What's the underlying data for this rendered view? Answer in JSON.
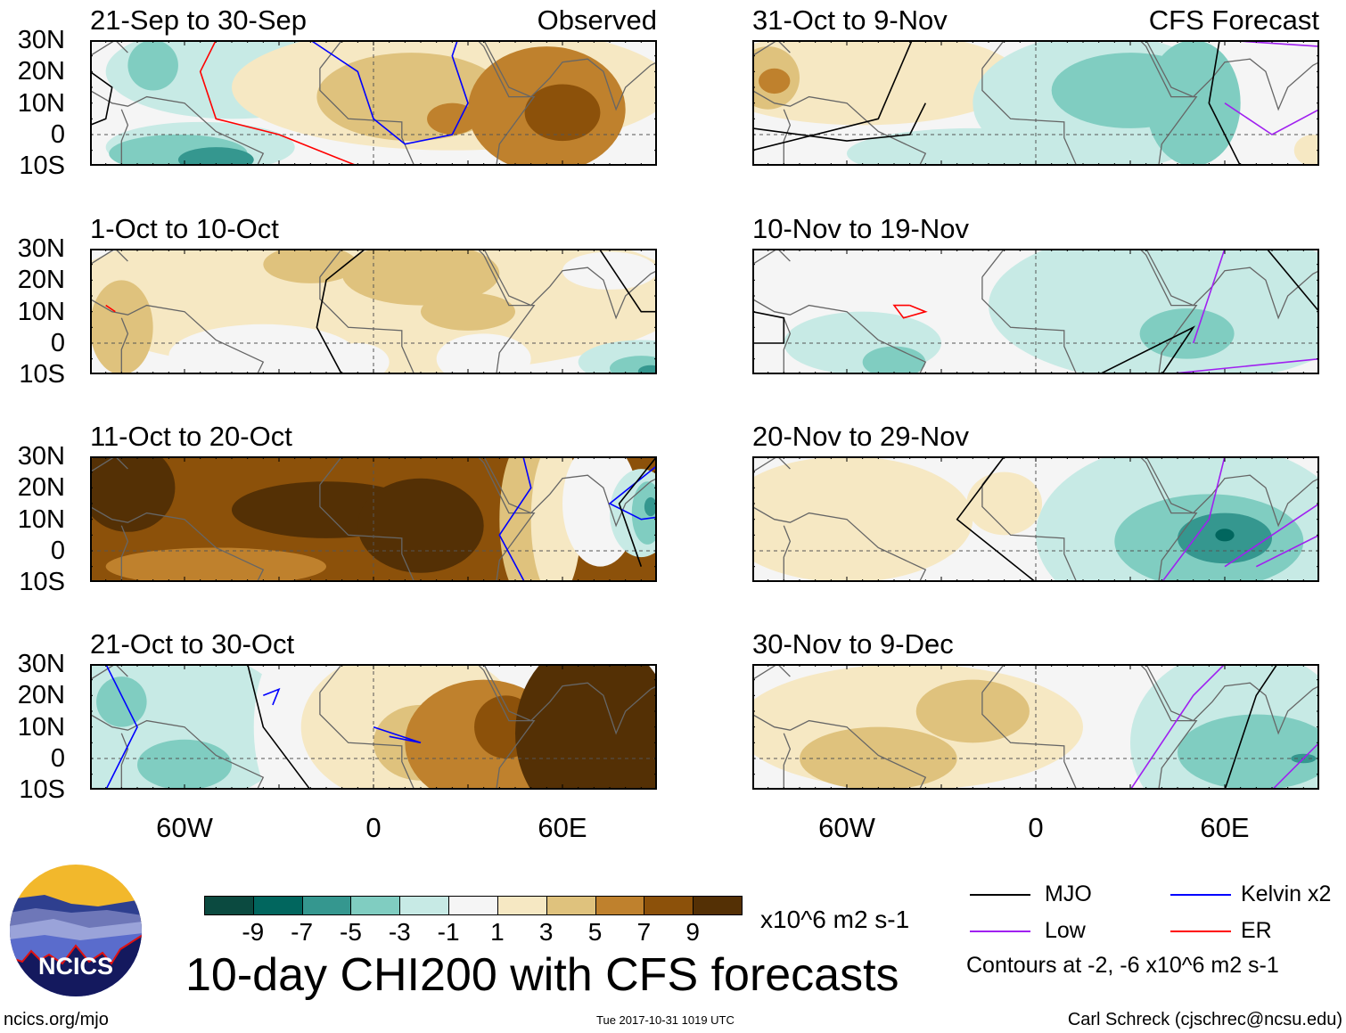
{
  "panels": [
    {
      "title": "21-Sep to 30-Sep",
      "tag": "Observed"
    },
    {
      "title": "1-Oct to 10-Oct",
      "tag": ""
    },
    {
      "title": "11-Oct to 20-Oct",
      "tag": ""
    },
    {
      "title": "21-Oct to 30-Oct",
      "tag": ""
    },
    {
      "title": "31-Oct to 9-Nov",
      "tag": "CFS Forecast"
    },
    {
      "title": "10-Nov to 19-Nov",
      "tag": ""
    },
    {
      "title": "20-Nov to 29-Nov",
      "tag": ""
    },
    {
      "title": "30-Nov to 9-Dec",
      "tag": ""
    }
  ],
  "lat_labels": [
    "30N",
    "20N",
    "10N",
    "0",
    "10S"
  ],
  "lon_labels": [
    "60W",
    "0",
    "60E"
  ],
  "colorbar": {
    "labels": [
      "-9",
      "-7",
      "-5",
      "-3",
      "-1",
      "1",
      "3",
      "5",
      "7",
      "9"
    ],
    "colors": [
      "#0b4a40",
      "#01665e",
      "#35978f",
      "#80cdc1",
      "#c7eae5",
      "#f5f5f5",
      "#f6e8c3",
      "#dfc27d",
      "#bf812d",
      "#8c510a",
      "#543005"
    ],
    "units": "x10^6 m2 s-1"
  },
  "main_title": "10-day CHI200 with CFS forecasts",
  "legend": {
    "items": [
      {
        "label": "MJO",
        "color": "#000000"
      },
      {
        "label": "Kelvin x2",
        "color": "#0000ff"
      },
      {
        "label": "Low",
        "color": "#a020f0"
      },
      {
        "label": "ER",
        "color": "#ff0000"
      }
    ],
    "contour_note": "Contours at -2, -6 x10^6 m2 s-1"
  },
  "logo": {
    "text": "NCICS"
  },
  "footer": {
    "url": "ncics.org/mjo",
    "timestamp": "Tue 2017-10-31 1019 UTC",
    "credit": "Carl Schreck (cjschrec@ncsu.edu)"
  }
}
